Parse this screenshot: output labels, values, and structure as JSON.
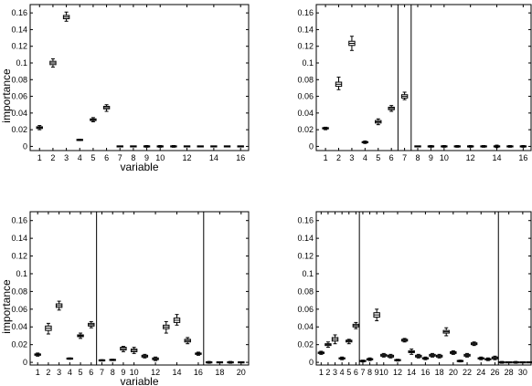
{
  "chart_data": [
    {
      "type": "box",
      "xlabel": "variable",
      "ylabel": "importance",
      "ylim": [
        -0.005,
        0.17
      ],
      "xlim": [
        0.3,
        16.6
      ],
      "yticks": [
        "0",
        "0.02",
        "0.04",
        "0.06",
        "0.08",
        "0.1",
        "0.12",
        "0.14",
        "0.16"
      ],
      "xticks": [
        "1",
        "2",
        "3",
        "4",
        "5",
        "6",
        "7",
        "8",
        "9",
        "10",
        "12",
        "14",
        "16"
      ],
      "vlines": [],
      "boxes": [
        {
          "x": 1,
          "q1": 0.0215,
          "q3": 0.0235,
          "lo": 0.02,
          "hi": 0.025
        },
        {
          "x": 2,
          "q1": 0.098,
          "q3": 0.102,
          "lo": 0.095,
          "hi": 0.105
        },
        {
          "x": 3,
          "q1": 0.153,
          "q3": 0.157,
          "lo": 0.15,
          "hi": 0.161
        },
        {
          "x": 4,
          "q1": 0.0075,
          "q3": 0.008,
          "lo": 0.007,
          "hi": 0.0085
        },
        {
          "x": 5,
          "q1": 0.031,
          "q3": 0.033,
          "lo": 0.0295,
          "hi": 0.0345
        },
        {
          "x": 6,
          "q1": 0.045,
          "q3": 0.048,
          "lo": 0.042,
          "hi": 0.05
        },
        {
          "x": 7,
          "q1": 0,
          "q3": 0,
          "lo": 0,
          "hi": 0
        },
        {
          "x": 8,
          "q1": 0,
          "q3": 0,
          "lo": 0,
          "hi": 0
        },
        {
          "x": 9,
          "q1": 0,
          "q3": 0,
          "lo": -0.001,
          "hi": 0.001
        },
        {
          "x": 10,
          "q1": 0,
          "q3": 0,
          "lo": -0.001,
          "hi": 0.001
        },
        {
          "x": 11,
          "q1": 0,
          "q3": 0,
          "lo": -0.001,
          "hi": 0.001
        },
        {
          "x": 12,
          "q1": 0,
          "q3": 0,
          "lo": 0,
          "hi": 0
        },
        {
          "x": 13,
          "q1": 0,
          "q3": 0,
          "lo": 0,
          "hi": 0
        },
        {
          "x": 14,
          "q1": 0,
          "q3": 0,
          "lo": 0,
          "hi": 0
        },
        {
          "x": 15,
          "q1": 0,
          "q3": 0,
          "lo": 0,
          "hi": 0
        },
        {
          "x": 16,
          "q1": 0,
          "q3": 0,
          "lo": 0,
          "hi": 0
        }
      ]
    },
    {
      "type": "box",
      "xlabel": "",
      "ylabel": "",
      "ylim": [
        -0.005,
        0.17
      ],
      "xlim": [
        0.3,
        16.6
      ],
      "yticks": [
        "0",
        "0.02",
        "0.04",
        "0.06",
        "0.08",
        "0.1",
        "0.12",
        "0.14",
        "0.16"
      ],
      "xticks": [
        "1",
        "2",
        "3",
        "4",
        "5",
        "6",
        "7",
        "8",
        "9",
        "10",
        "12",
        "14",
        "16"
      ],
      "vlines": [
        6.5,
        7.5
      ],
      "boxes": [
        {
          "x": 1,
          "q1": 0.021,
          "q3": 0.0225,
          "lo": 0.02,
          "hi": 0.023
        },
        {
          "x": 2,
          "q1": 0.072,
          "q3": 0.077,
          "lo": 0.068,
          "hi": 0.083
        },
        {
          "x": 3,
          "q1": 0.121,
          "q3": 0.126,
          "lo": 0.115,
          "hi": 0.132
        },
        {
          "x": 4,
          "q1": 0.0045,
          "q3": 0.0055,
          "lo": 0.0035,
          "hi": 0.0065
        },
        {
          "x": 5,
          "q1": 0.028,
          "q3": 0.031,
          "lo": 0.026,
          "hi": 0.033
        },
        {
          "x": 6,
          "q1": 0.044,
          "q3": 0.047,
          "lo": 0.042,
          "hi": 0.049
        },
        {
          "x": 7,
          "q1": 0.058,
          "q3": 0.062,
          "lo": 0.056,
          "hi": 0.065
        },
        {
          "x": 8,
          "q1": 0,
          "q3": 0,
          "lo": 0,
          "hi": 0
        },
        {
          "x": 9,
          "q1": 0,
          "q3": 0,
          "lo": -0.001,
          "hi": 0.001
        },
        {
          "x": 10,
          "q1": 0,
          "q3": 0,
          "lo": -0.001,
          "hi": 0.001
        },
        {
          "x": 11,
          "q1": 0,
          "q3": 0,
          "lo": -0.001,
          "hi": 0.001
        },
        {
          "x": 12,
          "q1": 0,
          "q3": 0,
          "lo": -0.001,
          "hi": 0.001
        },
        {
          "x": 13,
          "q1": 0,
          "q3": 0,
          "lo": -0.001,
          "hi": 0.001
        },
        {
          "x": 14,
          "q1": 0,
          "q3": 0,
          "lo": -0.0015,
          "hi": 0.0015
        },
        {
          "x": 15,
          "q1": 0,
          "q3": 0,
          "lo": -0.001,
          "hi": 0.001
        },
        {
          "x": 16,
          "q1": 0,
          "q3": 0,
          "lo": -0.001,
          "hi": 0.001
        }
      ]
    },
    {
      "type": "box",
      "xlabel": "variable",
      "ylabel": "importance",
      "ylim": [
        -0.003,
        0.17
      ],
      "xlim": [
        0.3,
        20.7
      ],
      "yticks": [
        "0",
        "0.02",
        "0.04",
        "0.06",
        "0.08",
        "0.1",
        "0.12",
        "0.14",
        "0.16"
      ],
      "xticks": [
        "1",
        "2",
        "3",
        "4",
        "5",
        "6",
        "7",
        "8",
        "9",
        "10",
        "12",
        "14",
        "16",
        "18",
        "20"
      ],
      "vlines": [
        6.5,
        16.5
      ],
      "boxes": [
        {
          "x": 1,
          "q1": 0.008,
          "q3": 0.0095,
          "lo": 0.007,
          "hi": 0.0105
        },
        {
          "x": 2,
          "q1": 0.036,
          "q3": 0.041,
          "lo": 0.032,
          "hi": 0.044
        },
        {
          "x": 3,
          "q1": 0.062,
          "q3": 0.066,
          "lo": 0.059,
          "hi": 0.069
        },
        {
          "x": 4,
          "q1": 0.004,
          "q3": 0.0045,
          "lo": 0.0035,
          "hi": 0.005
        },
        {
          "x": 5,
          "q1": 0.029,
          "q3": 0.031,
          "lo": 0.027,
          "hi": 0.033
        },
        {
          "x": 6,
          "q1": 0.041,
          "q3": 0.044,
          "lo": 0.039,
          "hi": 0.046
        },
        {
          "x": 7,
          "q1": 0.002,
          "q3": 0.0025,
          "lo": 0.0015,
          "hi": 0.003
        },
        {
          "x": 8,
          "q1": 0.0025,
          "q3": 0.003,
          "lo": 0.002,
          "hi": 0.0035
        },
        {
          "x": 9,
          "q1": 0.014,
          "q3": 0.017,
          "lo": 0.012,
          "hi": 0.018
        },
        {
          "x": 10,
          "q1": 0.012,
          "q3": 0.015,
          "lo": 0.01,
          "hi": 0.017
        },
        {
          "x": 11,
          "q1": 0.006,
          "q3": 0.008,
          "lo": 0.005,
          "hi": 0.009
        },
        {
          "x": 12,
          "q1": 0.003,
          "q3": 0.005,
          "lo": 0.002,
          "hi": 0.006
        },
        {
          "x": 13,
          "q1": 0.038,
          "q3": 0.042,
          "lo": 0.033,
          "hi": 0.046
        },
        {
          "x": 14,
          "q1": 0.045,
          "q3": 0.05,
          "lo": 0.042,
          "hi": 0.054
        },
        {
          "x": 15,
          "q1": 0.023,
          "q3": 0.026,
          "lo": 0.021,
          "hi": 0.028
        },
        {
          "x": 16,
          "q1": 0.009,
          "q3": 0.0105,
          "lo": 0.008,
          "hi": 0.0115
        },
        {
          "x": 17,
          "q1": 0,
          "q3": 0,
          "lo": -0.001,
          "hi": 0.001
        },
        {
          "x": 18,
          "q1": 0,
          "q3": 0,
          "lo": 0,
          "hi": 0
        },
        {
          "x": 19,
          "q1": 0,
          "q3": 0,
          "lo": -0.001,
          "hi": 0.001
        },
        {
          "x": 20,
          "q1": 0,
          "q3": 0,
          "lo": 0,
          "hi": 0
        }
      ]
    },
    {
      "type": "box",
      "xlabel": "",
      "ylabel": "",
      "ylim": [
        -0.003,
        0.17
      ],
      "xlim": [
        0.3,
        31.2
      ],
      "yticks": [
        "0",
        "0.02",
        "0.04",
        "0.06",
        "0.08",
        "0.1",
        "0.12",
        "0.14",
        "0.16"
      ],
      "xticks": [
        "1",
        "2",
        "3",
        "4",
        "5",
        "6",
        "7",
        "8",
        "9",
        "10",
        "12",
        "14",
        "16",
        "18",
        "20",
        "22",
        "24",
        "26",
        "28",
        "30"
      ],
      "vlines": [
        6.5,
        26.5
      ],
      "boxes": [
        {
          "x": 1,
          "q1": 0.01,
          "q3": 0.0115,
          "lo": 0.009,
          "hi": 0.0125
        },
        {
          "x": 2,
          "q1": 0.019,
          "q3": 0.021,
          "lo": 0.017,
          "hi": 0.023
        },
        {
          "x": 3,
          "q1": 0.024,
          "q3": 0.028,
          "lo": 0.021,
          "hi": 0.031
        },
        {
          "x": 4,
          "q1": 0.004,
          "q3": 0.005,
          "lo": 0.003,
          "hi": 0.006
        },
        {
          "x": 5,
          "q1": 0.023,
          "q3": 0.025,
          "lo": 0.021,
          "hi": 0.026
        },
        {
          "x": 6,
          "q1": 0.04,
          "q3": 0.043,
          "lo": 0.038,
          "hi": 0.045
        },
        {
          "x": 7,
          "q1": 0.001,
          "q3": 0.002,
          "lo": 0.0005,
          "hi": 0.0025
        },
        {
          "x": 8,
          "q1": 0.003,
          "q3": 0.004,
          "lo": 0.002,
          "hi": 0.005
        },
        {
          "x": 9,
          "q1": 0.051,
          "q3": 0.056,
          "lo": 0.047,
          "hi": 0.06
        },
        {
          "x": 10,
          "q1": 0.007,
          "q3": 0.009,
          "lo": 0.006,
          "hi": 0.01
        },
        {
          "x": 11,
          "q1": 0.006,
          "q3": 0.008,
          "lo": 0.005,
          "hi": 0.009
        },
        {
          "x": 12,
          "q1": 0.002,
          "q3": 0.003,
          "lo": 0.0015,
          "hi": 0.0035
        },
        {
          "x": 13,
          "q1": 0.024,
          "q3": 0.026,
          "lo": 0.023,
          "hi": 0.027
        },
        {
          "x": 14,
          "q1": 0.011,
          "q3": 0.013,
          "lo": 0.009,
          "hi": 0.015
        },
        {
          "x": 15,
          "q1": 0.006,
          "q3": 0.008,
          "lo": 0.005,
          "hi": 0.009
        },
        {
          "x": 16,
          "q1": 0.004,
          "q3": 0.005,
          "lo": 0.003,
          "hi": 0.006
        },
        {
          "x": 17,
          "q1": 0.007,
          "q3": 0.009,
          "lo": 0.006,
          "hi": 0.01
        },
        {
          "x": 18,
          "q1": 0.006,
          "q3": 0.008,
          "lo": 0.005,
          "hi": 0.009
        },
        {
          "x": 19,
          "q1": 0.033,
          "q3": 0.036,
          "lo": 0.03,
          "hi": 0.039
        },
        {
          "x": 20,
          "q1": 0.01,
          "q3": 0.012,
          "lo": 0.009,
          "hi": 0.013
        },
        {
          "x": 21,
          "q1": 0.001,
          "q3": 0.002,
          "lo": 0.0005,
          "hi": 0.0025
        },
        {
          "x": 22,
          "q1": 0.007,
          "q3": 0.009,
          "lo": 0.006,
          "hi": 0.01
        },
        {
          "x": 23,
          "q1": 0.02,
          "q3": 0.022,
          "lo": 0.019,
          "hi": 0.023
        },
        {
          "x": 24,
          "q1": 0.004,
          "q3": 0.005,
          "lo": 0.003,
          "hi": 0.006
        },
        {
          "x": 25,
          "q1": 0.003,
          "q3": 0.004,
          "lo": 0.002,
          "hi": 0.005
        },
        {
          "x": 26,
          "q1": 0.004,
          "q3": 0.006,
          "lo": 0.003,
          "hi": 0.007
        },
        {
          "x": 27,
          "q1": 0,
          "q3": 0,
          "lo": -0.001,
          "hi": 0.001
        },
        {
          "x": 28,
          "q1": 0,
          "q3": 0,
          "lo": 0,
          "hi": 0
        },
        {
          "x": 29,
          "q1": 0,
          "q3": 0,
          "lo": -0.001,
          "hi": 0.001
        },
        {
          "x": 30,
          "q1": 0,
          "q3": 0,
          "lo": 0,
          "hi": 0
        },
        {
          "x": 31,
          "q1": 0,
          "q3": 0,
          "lo": 0,
          "hi": 0
        }
      ]
    }
  ]
}
